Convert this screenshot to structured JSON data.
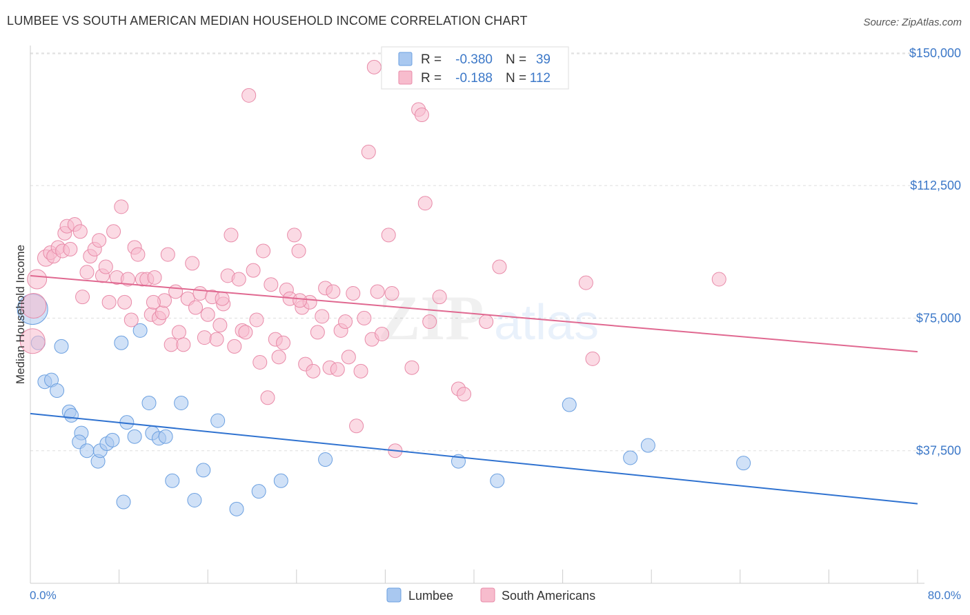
{
  "title": "LUMBEE VS SOUTH AMERICAN MEDIAN HOUSEHOLD INCOME CORRELATION CHART",
  "source": "Source: ZipAtlas.com",
  "watermark": {
    "zip": "ZIP",
    "atlas": "atlas"
  },
  "legend_box": {
    "rows": [
      {
        "r_label": "R =",
        "r_value": "-0.380",
        "n_label": "N =",
        "n_value": "39",
        "color": "#a9c8f0",
        "stroke": "#6a9fe0"
      },
      {
        "r_label": "R =",
        "r_value": "-0.188",
        "n_label": "N =",
        "n_value": "112",
        "color": "#f7bccd",
        "stroke": "#e88aa8"
      }
    ]
  },
  "bottom_legend": [
    {
      "label": "Lumbee",
      "color": "#a9c8f0",
      "stroke": "#6a9fe0"
    },
    {
      "label": "South Americans",
      "color": "#f7bccd",
      "stroke": "#e88aa8"
    }
  ],
  "chart_data": {
    "type": "scatter",
    "title": "LUMBEE VS SOUTH AMERICAN MEDIAN HOUSEHOLD INCOME CORRELATION CHART",
    "xlabel": "",
    "ylabel": "Median Household Income",
    "xlim": [
      0,
      80
    ],
    "ylim": [
      0,
      152500
    ],
    "x_tick_labels": [
      "0.0%",
      "80.0%"
    ],
    "y_ticks": [
      37500,
      75000,
      112500,
      150000
    ],
    "y_tick_labels": [
      "$37,500",
      "$75,000",
      "$112,500",
      "$150,000"
    ],
    "grid": true,
    "legend_position": "top-center",
    "series": [
      {
        "name": "Lumbee",
        "color": "#6a9fe0",
        "fill": "#a9c8f0",
        "line_color": "#2f72d0",
        "trend": [
          [
            0,
            48000
          ],
          [
            80,
            22500
          ]
        ],
        "points": [
          [
            0.2,
            77500,
            22
          ],
          [
            0.7,
            68000,
            10
          ],
          [
            2.8,
            67000,
            10
          ],
          [
            1.3,
            57000,
            10
          ],
          [
            1.9,
            57500,
            10
          ],
          [
            2.4,
            54500,
            10
          ],
          [
            3.5,
            48500,
            10
          ],
          [
            3.7,
            47500,
            10
          ],
          [
            4.6,
            42500,
            10
          ],
          [
            4.4,
            40000,
            10
          ],
          [
            5.1,
            37500,
            10
          ],
          [
            6.1,
            34500,
            10
          ],
          [
            6.3,
            37500,
            10
          ],
          [
            6.9,
            39500,
            10
          ],
          [
            7.4,
            40500,
            10
          ],
          [
            8.2,
            68000,
            10
          ],
          [
            8.7,
            45500,
            10
          ],
          [
            9.4,
            41500,
            10
          ],
          [
            9.9,
            71500,
            10
          ],
          [
            10.7,
            51000,
            10
          ],
          [
            11.0,
            42500,
            10
          ],
          [
            11.6,
            41000,
            10
          ],
          [
            12.2,
            41500,
            10
          ],
          [
            12.8,
            29000,
            10
          ],
          [
            13.6,
            51000,
            10
          ],
          [
            14.8,
            23500,
            10
          ],
          [
            15.6,
            32000,
            10
          ],
          [
            16.9,
            46000,
            10
          ],
          [
            18.6,
            21000,
            10
          ],
          [
            20.6,
            26000,
            10
          ],
          [
            22.6,
            29000,
            10
          ],
          [
            26.6,
            35000,
            10
          ],
          [
            38.6,
            34500,
            10
          ],
          [
            42.1,
            29000,
            10
          ],
          [
            48.6,
            50500,
            10
          ],
          [
            54.1,
            35500,
            10
          ],
          [
            55.7,
            39000,
            10
          ],
          [
            64.3,
            34000,
            10
          ],
          [
            8.4,
            23000,
            10
          ]
        ]
      },
      {
        "name": "South Americans",
        "color": "#e88aa8",
        "fill": "#f7bccd",
        "line_color": "#e06890",
        "trend": [
          [
            0,
            87000
          ],
          [
            80,
            65500
          ]
        ],
        "points": [
          [
            0.3,
            78500,
            18
          ],
          [
            0.6,
            86000,
            14
          ],
          [
            0.2,
            68500,
            18
          ],
          [
            1.4,
            92000,
            12
          ],
          [
            1.8,
            93500,
            10
          ],
          [
            2.1,
            92500,
            10
          ],
          [
            2.5,
            95000,
            10
          ],
          [
            2.9,
            94000,
            10
          ],
          [
            3.1,
            99000,
            10
          ],
          [
            3.3,
            101000,
            10
          ],
          [
            3.6,
            94500,
            10
          ],
          [
            4.0,
            101500,
            10
          ],
          [
            4.5,
            99500,
            10
          ],
          [
            4.7,
            81000,
            10
          ],
          [
            5.1,
            88000,
            10
          ],
          [
            5.4,
            92500,
            10
          ],
          [
            5.8,
            94500,
            10
          ],
          [
            6.2,
            97000,
            10
          ],
          [
            6.5,
            87000,
            10
          ],
          [
            6.8,
            89500,
            10
          ],
          [
            7.1,
            79500,
            10
          ],
          [
            7.5,
            99500,
            10
          ],
          [
            7.8,
            86500,
            10
          ],
          [
            8.2,
            106500,
            10
          ],
          [
            8.5,
            79500,
            10
          ],
          [
            8.8,
            86000,
            10
          ],
          [
            9.1,
            74500,
            10
          ],
          [
            9.4,
            95000,
            10
          ],
          [
            9.7,
            93000,
            10
          ],
          [
            10.1,
            86000,
            10
          ],
          [
            10.5,
            86000,
            10
          ],
          [
            10.9,
            76000,
            10
          ],
          [
            11.2,
            86500,
            10
          ],
          [
            11.6,
            75000,
            10
          ],
          [
            11.9,
            76500,
            10
          ],
          [
            12.1,
            80000,
            10
          ],
          [
            12.4,
            93000,
            10
          ],
          [
            12.7,
            67500,
            10
          ],
          [
            13.1,
            82500,
            10
          ],
          [
            13.4,
            71000,
            10
          ],
          [
            13.8,
            67500,
            10
          ],
          [
            14.2,
            80500,
            10
          ],
          [
            14.6,
            90500,
            10
          ],
          [
            14.9,
            78000,
            10
          ],
          [
            15.3,
            82000,
            10
          ],
          [
            15.7,
            69500,
            10
          ],
          [
            16.0,
            76000,
            10
          ],
          [
            16.4,
            81000,
            10
          ],
          [
            16.8,
            69000,
            10
          ],
          [
            17.1,
            73000,
            10
          ],
          [
            17.4,
            79000,
            10
          ],
          [
            17.8,
            87000,
            10
          ],
          [
            18.1,
            98500,
            10
          ],
          [
            18.4,
            67000,
            10
          ],
          [
            18.8,
            86000,
            10
          ],
          [
            19.1,
            71500,
            10
          ],
          [
            19.4,
            71000,
            10
          ],
          [
            19.7,
            138000,
            10
          ],
          [
            20.1,
            88500,
            10
          ],
          [
            20.4,
            74500,
            10
          ],
          [
            20.7,
            62500,
            10
          ],
          [
            21.0,
            94000,
            10
          ],
          [
            21.4,
            52500,
            10
          ],
          [
            21.7,
            84500,
            10
          ],
          [
            22.1,
            69000,
            10
          ],
          [
            22.4,
            64000,
            10
          ],
          [
            22.8,
            68000,
            10
          ],
          [
            23.1,
            83000,
            10
          ],
          [
            23.4,
            80500,
            10
          ],
          [
            23.8,
            98500,
            10
          ],
          [
            24.2,
            94000,
            10
          ],
          [
            24.5,
            78000,
            10
          ],
          [
            24.8,
            62000,
            10
          ],
          [
            25.2,
            79500,
            10
          ],
          [
            25.5,
            60000,
            10
          ],
          [
            25.9,
            71000,
            10
          ],
          [
            26.3,
            75500,
            10
          ],
          [
            26.6,
            83500,
            10
          ],
          [
            27.0,
            61000,
            10
          ],
          [
            27.3,
            82500,
            10
          ],
          [
            27.7,
            60500,
            10
          ],
          [
            28.0,
            71500,
            10
          ],
          [
            28.4,
            74000,
            10
          ],
          [
            28.7,
            64000,
            10
          ],
          [
            29.1,
            82000,
            10
          ],
          [
            29.4,
            44500,
            10
          ],
          [
            29.8,
            60000,
            10
          ],
          [
            30.1,
            75000,
            10
          ],
          [
            30.5,
            122000,
            10
          ],
          [
            30.8,
            69000,
            10
          ],
          [
            31.0,
            146000,
            10
          ],
          [
            31.3,
            82500,
            10
          ],
          [
            31.7,
            70500,
            10
          ],
          [
            32.3,
            98500,
            10
          ],
          [
            32.6,
            82000,
            10
          ],
          [
            32.9,
            37500,
            10
          ],
          [
            35.0,
            134000,
            10
          ],
          [
            35.3,
            132500,
            10
          ],
          [
            35.6,
            107500,
            10
          ],
          [
            36.0,
            74000,
            10
          ],
          [
            36.9,
            81000,
            10
          ],
          [
            38.6,
            55000,
            10
          ],
          [
            39.1,
            53500,
            10
          ],
          [
            41.1,
            74000,
            10
          ],
          [
            42.3,
            89500,
            10
          ],
          [
            50.1,
            85000,
            10
          ],
          [
            50.7,
            63500,
            10
          ],
          [
            62.1,
            86000,
            10
          ],
          [
            34.4,
            61000,
            10
          ],
          [
            11.1,
            79500,
            10
          ],
          [
            17.3,
            80500,
            10
          ],
          [
            24.3,
            80000,
            10
          ]
        ]
      }
    ]
  }
}
